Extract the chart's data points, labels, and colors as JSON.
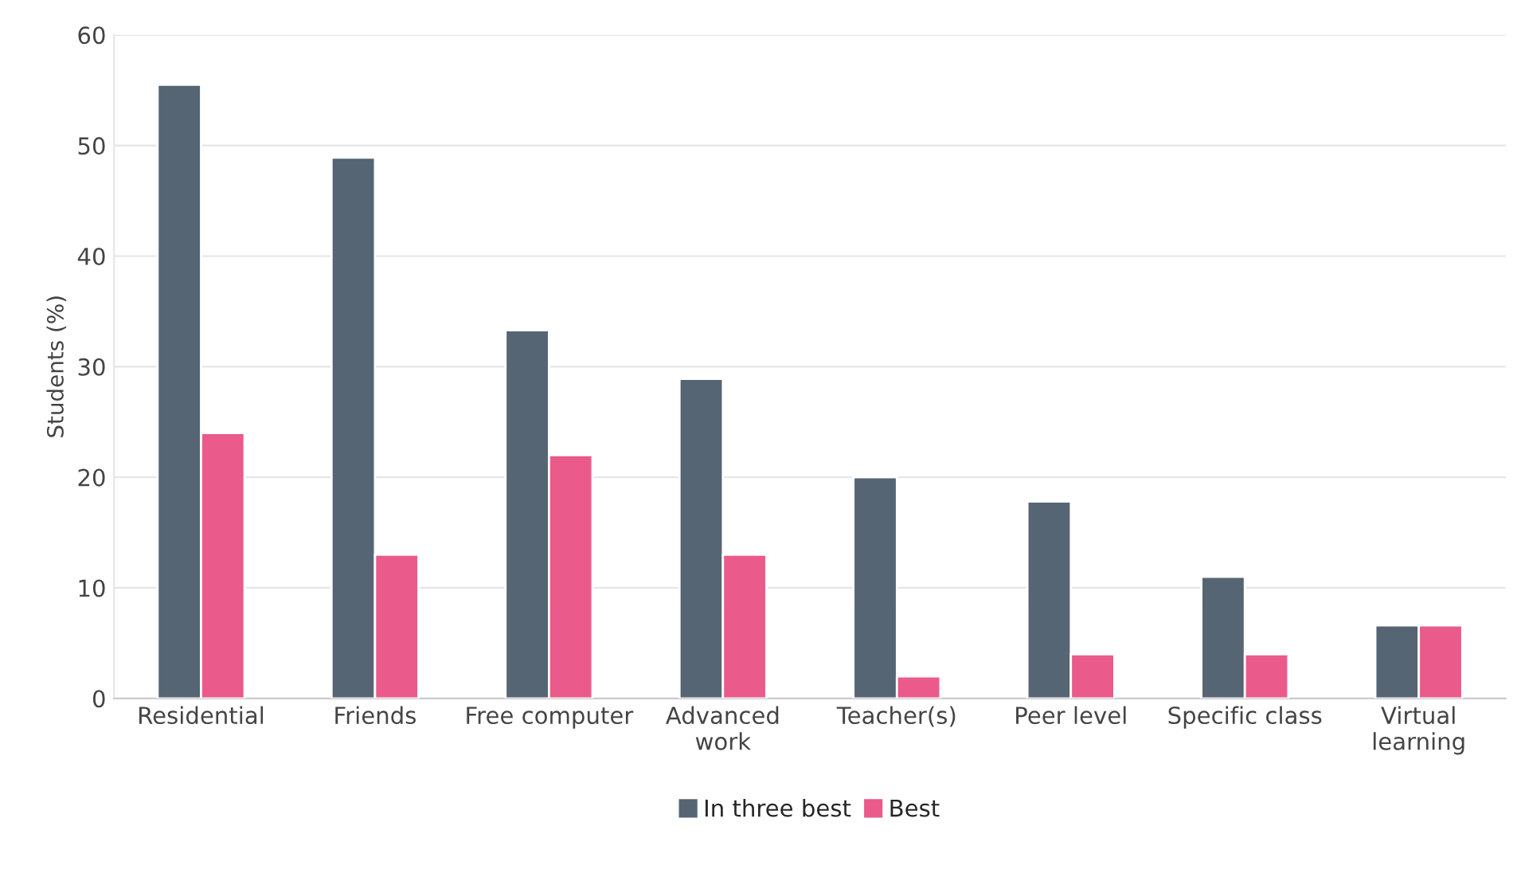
{
  "chart_data": {
    "type": "bar",
    "ylabel": "Students (%)",
    "categories": [
      "Residential",
      "Friends",
      "Free computer",
      "Advanced\nwork",
      "Teacher(s)",
      "Peer level",
      "Specific class",
      "Virtual\nlearning"
    ],
    "series": [
      {
        "name": "In three best",
        "color": "#566573",
        "values": [
          55.5,
          48.9,
          33.3,
          28.9,
          20,
          17.8,
          11,
          6.6
        ]
      },
      {
        "name": "Best",
        "color": "#ea5a8b",
        "values": [
          24,
          13,
          22,
          13,
          2,
          4,
          4,
          6.6
        ]
      }
    ],
    "ylim": [
      0,
      60
    ],
    "yticks": [
      0,
      10,
      20,
      30,
      40,
      50,
      60
    ],
    "grid": "y",
    "legend": "bottom"
  }
}
